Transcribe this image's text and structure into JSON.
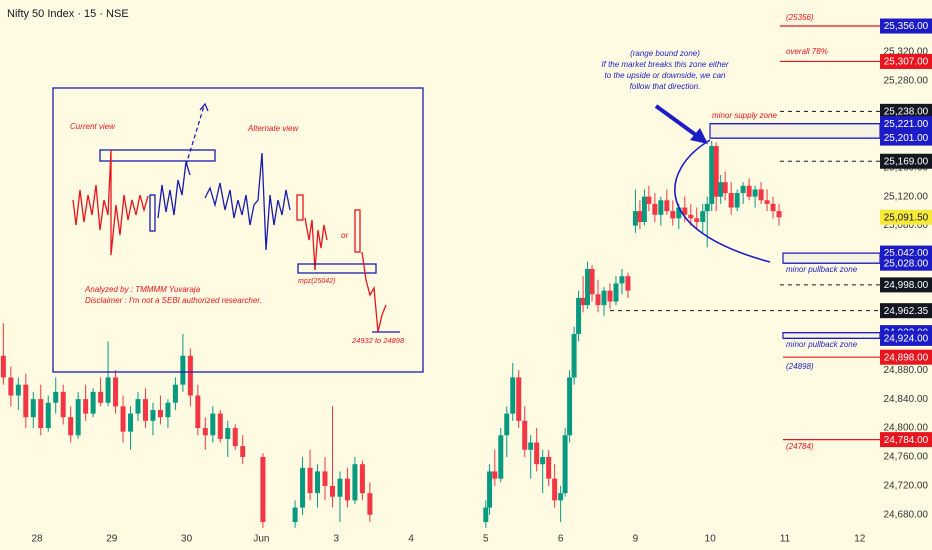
{
  "chart_data": {
    "type": "candlestick",
    "title": "Nifty 50 Index · 15 · NSE",
    "up_color": "#089981",
    "down_color": "#f23645",
    "xlim": [
      -0.495,
      11.965
    ],
    "ylim": [
      24659,
      25392
    ],
    "xticks": [
      {
        "value": 0,
        "label": "28"
      },
      {
        "value": 1,
        "label": "29"
      },
      {
        "value": 2,
        "label": "30"
      },
      {
        "value": 3,
        "label": "Jun"
      },
      {
        "value": 4,
        "label": "3"
      },
      {
        "value": 5,
        "label": "4"
      },
      {
        "value": 6,
        "label": "5"
      },
      {
        "value": 7,
        "label": "6"
      },
      {
        "value": 8,
        "label": "9"
      },
      {
        "value": 9,
        "label": "10"
      },
      {
        "value": 10,
        "label": "11"
      },
      {
        "value": 11,
        "label": "12"
      }
    ],
    "yticks": [
      {
        "value": 24680,
        "label": "24,680.00"
      },
      {
        "value": 24720,
        "label": "24,720.00"
      },
      {
        "value": 24760,
        "label": "24,760.00"
      },
      {
        "value": 24800,
        "label": "24,800.00"
      },
      {
        "value": 24840,
        "label": "24,840.00"
      },
      {
        "value": 24880,
        "label": "24,880.00"
      },
      {
        "value": 24920,
        "label": "24,920.00"
      },
      {
        "value": 24960,
        "label": "24,960.00"
      },
      {
        "value": 25000,
        "label": "25,000.00"
      },
      {
        "value": 25040,
        "label": "25,040.00"
      },
      {
        "value": 25080,
        "label": "25,080.00"
      },
      {
        "value": 25120,
        "label": "25,120.00"
      },
      {
        "value": 25160,
        "label": "25,160.00"
      },
      {
        "value": 25200,
        "label": "25,200.00"
      },
      {
        "value": 25240,
        "label": "25,240.00"
      },
      {
        "value": 25280,
        "label": "25,280.00"
      },
      {
        "value": 25320,
        "label": "25,320.00"
      }
    ],
    "candles": [
      {
        "x": -0.45,
        "o": 24900,
        "h": 24945,
        "l": 24860,
        "c": 24870
      },
      {
        "x": -0.35,
        "o": 24870,
        "h": 24885,
        "l": 24830,
        "c": 24845
      },
      {
        "x": -0.25,
        "o": 24845,
        "h": 24870,
        "l": 24825,
        "c": 24860
      },
      {
        "x": -0.15,
        "o": 24860,
        "h": 24875,
        "l": 24800,
        "c": 24815
      },
      {
        "x": -0.05,
        "o": 24815,
        "h": 24850,
        "l": 24800,
        "c": 24840
      },
      {
        "x": 0.05,
        "o": 24840,
        "h": 24860,
        "l": 24790,
        "c": 24800
      },
      {
        "x": 0.15,
        "o": 24800,
        "h": 24845,
        "l": 24795,
        "c": 24835
      },
      {
        "x": 0.25,
        "o": 24835,
        "h": 24870,
        "l": 24820,
        "c": 24850
      },
      {
        "x": 0.35,
        "o": 24850,
        "h": 24860,
        "l": 24805,
        "c": 24815
      },
      {
        "x": 0.45,
        "o": 24815,
        "h": 24830,
        "l": 24780,
        "c": 24790
      },
      {
        "x": 0.55,
        "o": 24790,
        "h": 24850,
        "l": 24785,
        "c": 24840
      },
      {
        "x": 0.65,
        "o": 24840,
        "h": 24860,
        "l": 24810,
        "c": 24820
      },
      {
        "x": 0.75,
        "o": 24820,
        "h": 24855,
        "l": 24815,
        "c": 24850
      },
      {
        "x": 0.85,
        "o": 24850,
        "h": 24870,
        "l": 24830,
        "c": 24835
      },
      {
        "x": 0.95,
        "o": 24835,
        "h": 24920,
        "l": 24830,
        "c": 24870
      },
      {
        "x": 1.05,
        "o": 24870,
        "h": 24880,
        "l": 24820,
        "c": 24830
      },
      {
        "x": 1.15,
        "o": 24830,
        "h": 24845,
        "l": 24780,
        "c": 24795
      },
      {
        "x": 1.25,
        "o": 24795,
        "h": 24830,
        "l": 24770,
        "c": 24820
      },
      {
        "x": 1.35,
        "o": 24820,
        "h": 24850,
        "l": 24810,
        "c": 24840
      },
      {
        "x": 1.45,
        "o": 24840,
        "h": 24855,
        "l": 24800,
        "c": 24810
      },
      {
        "x": 1.55,
        "o": 24810,
        "h": 24835,
        "l": 24790,
        "c": 24825
      },
      {
        "x": 1.65,
        "o": 24825,
        "h": 24845,
        "l": 24805,
        "c": 24815
      },
      {
        "x": 1.75,
        "o": 24815,
        "h": 24840,
        "l": 24800,
        "c": 24835
      },
      {
        "x": 1.85,
        "o": 24835,
        "h": 24870,
        "l": 24825,
        "c": 24860
      },
      {
        "x": 1.95,
        "o": 24860,
        "h": 24930,
        "l": 24850,
        "c": 24900
      },
      {
        "x": 2.05,
        "o": 24900,
        "h": 24910,
        "l": 24830,
        "c": 24845
      },
      {
        "x": 2.15,
        "o": 24845,
        "h": 24860,
        "l": 24790,
        "c": 24800
      },
      {
        "x": 2.25,
        "o": 24800,
        "h": 24815,
        "l": 24770,
        "c": 24790
      },
      {
        "x": 2.35,
        "o": 24790,
        "h": 24830,
        "l": 24780,
        "c": 24820
      },
      {
        "x": 2.45,
        "o": 24820,
        "h": 24825,
        "l": 24780,
        "c": 24785
      },
      {
        "x": 2.55,
        "o": 24785,
        "h": 24810,
        "l": 24760,
        "c": 24800
      },
      {
        "x": 2.65,
        "o": 24800,
        "h": 24805,
        "l": 24770,
        "c": 24775
      },
      {
        "x": 2.75,
        "o": 24775,
        "h": 24790,
        "l": 24750,
        "c": 24760
      },
      {
        "x": 3.02,
        "o": 24760,
        "h": 24765,
        "l": 24662,
        "c": 24670
      },
      {
        "x": 3.45,
        "o": 24670,
        "h": 24700,
        "l": 24662,
        "c": 24690
      },
      {
        "x": 3.55,
        "o": 24690,
        "h": 24760,
        "l": 24680,
        "c": 24745
      },
      {
        "x": 3.65,
        "o": 24745,
        "h": 24770,
        "l": 24700,
        "c": 24710
      },
      {
        "x": 3.75,
        "o": 24710,
        "h": 24750,
        "l": 24690,
        "c": 24740
      },
      {
        "x": 3.85,
        "o": 24740,
        "h": 24760,
        "l": 24700,
        "c": 24720
      },
      {
        "x": 3.95,
        "o": 24720,
        "h": 24830,
        "l": 24690,
        "c": 24705
      },
      {
        "x": 4.05,
        "o": 24705,
        "h": 24740,
        "l": 24670,
        "c": 24730
      },
      {
        "x": 4.15,
        "o": 24730,
        "h": 24745,
        "l": 24690,
        "c": 24700
      },
      {
        "x": 4.25,
        "o": 24700,
        "h": 24760,
        "l": 24695,
        "c": 24750
      },
      {
        "x": 4.35,
        "o": 24750,
        "h": 24755,
        "l": 24700,
        "c": 24710
      },
      {
        "x": 4.45,
        "o": 24710,
        "h": 24725,
        "l": 24670,
        "c": 24680
      },
      {
        "x": 6.0,
        "o": 24670,
        "h": 24700,
        "l": 24662,
        "c": 24690
      },
      {
        "x": 6.05,
        "o": 24690,
        "h": 24750,
        "l": 24680,
        "c": 24740
      },
      {
        "x": 6.12,
        "o": 24740,
        "h": 24770,
        "l": 24720,
        "c": 24730
      },
      {
        "x": 6.2,
        "o": 24730,
        "h": 24800,
        "l": 24725,
        "c": 24790
      },
      {
        "x": 6.28,
        "o": 24790,
        "h": 24830,
        "l": 24760,
        "c": 24820
      },
      {
        "x": 6.36,
        "o": 24820,
        "h": 24890,
        "l": 24810,
        "c": 24870
      },
      {
        "x": 6.44,
        "o": 24870,
        "h": 24880,
        "l": 24800,
        "c": 24810
      },
      {
        "x": 6.52,
        "o": 24810,
        "h": 24830,
        "l": 24760,
        "c": 24770
      },
      {
        "x": 6.6,
        "o": 24770,
        "h": 24790,
        "l": 24730,
        "c": 24780
      },
      {
        "x": 6.68,
        "o": 24780,
        "h": 24800,
        "l": 24740,
        "c": 24750
      },
      {
        "x": 6.76,
        "o": 24750,
        "h": 24770,
        "l": 24710,
        "c": 24760
      },
      {
        "x": 6.84,
        "o": 24760,
        "h": 24770,
        "l": 24720,
        "c": 24730
      },
      {
        "x": 6.92,
        "o": 24730,
        "h": 24750,
        "l": 24690,
        "c": 24700
      },
      {
        "x": 7.0,
        "o": 24700,
        "h": 24720,
        "l": 24670,
        "c": 24710
      },
      {
        "x": 7.06,
        "o": 24710,
        "h": 24800,
        "l": 24705,
        "c": 24790
      },
      {
        "x": 7.12,
        "o": 24790,
        "h": 24880,
        "l": 24780,
        "c": 24870
      },
      {
        "x": 7.18,
        "o": 24870,
        "h": 24940,
        "l": 24860,
        "c": 24930
      },
      {
        "x": 7.24,
        "o": 24930,
        "h": 24990,
        "l": 24920,
        "c": 24980
      },
      {
        "x": 7.3,
        "o": 24980,
        "h": 25010,
        "l": 24960,
        "c": 24970
      },
      {
        "x": 7.36,
        "o": 24970,
        "h": 25030,
        "l": 24965,
        "c": 25020
      },
      {
        "x": 7.42,
        "o": 25020,
        "h": 25025,
        "l": 24975,
        "c": 24985
      },
      {
        "x": 7.5,
        "o": 24985,
        "h": 25005,
        "l": 24960,
        "c": 24970
      },
      {
        "x": 7.58,
        "o": 24970,
        "h": 24995,
        "l": 24955,
        "c": 24990
      },
      {
        "x": 7.66,
        "o": 24990,
        "h": 25000,
        "l": 24965,
        "c": 24975
      },
      {
        "x": 7.74,
        "o": 24975,
        "h": 25010,
        "l": 24970,
        "c": 25000
      },
      {
        "x": 7.82,
        "o": 25000,
        "h": 25020,
        "l": 24985,
        "c": 25010
      },
      {
        "x": 7.9,
        "o": 25010,
        "h": 25015,
        "l": 24980,
        "c": 24990
      },
      {
        "x": 8.0,
        "o": 25080,
        "h": 25130,
        "l": 25070,
        "c": 25100
      },
      {
        "x": 8.06,
        "o": 25100,
        "h": 25115,
        "l": 25075,
        "c": 25085
      },
      {
        "x": 8.12,
        "o": 25085,
        "h": 25130,
        "l": 25080,
        "c": 25120
      },
      {
        "x": 8.18,
        "o": 25120,
        "h": 25135,
        "l": 25100,
        "c": 25110
      },
      {
        "x": 8.26,
        "o": 25110,
        "h": 25125,
        "l": 25085,
        "c": 25095
      },
      {
        "x": 8.34,
        "o": 25095,
        "h": 25120,
        "l": 25080,
        "c": 25115
      },
      {
        "x": 8.42,
        "o": 25115,
        "h": 25130,
        "l": 25095,
        "c": 25100
      },
      {
        "x": 8.5,
        "o": 25100,
        "h": 25115,
        "l": 25080,
        "c": 25090
      },
      {
        "x": 8.58,
        "o": 25090,
        "h": 25110,
        "l": 25075,
        "c": 25105
      },
      {
        "x": 8.66,
        "o": 25105,
        "h": 25120,
        "l": 25085,
        "c": 25095
      },
      {
        "x": 8.74,
        "o": 25095,
        "h": 25110,
        "l": 25080,
        "c": 25090
      },
      {
        "x": 8.82,
        "o": 25090,
        "h": 25105,
        "l": 25075,
        "c": 25085
      },
      {
        "x": 8.9,
        "o": 25085,
        "h": 25110,
        "l": 25070,
        "c": 25100
      },
      {
        "x": 8.96,
        "o": 25100,
        "h": 25120,
        "l": 25050,
        "c": 25110
      },
      {
        "x": 9.02,
        "o": 25110,
        "h": 25197,
        "l": 25100,
        "c": 25190
      },
      {
        "x": 9.08,
        "o": 25190,
        "h": 25195,
        "l": 25100,
        "c": 25120
      },
      {
        "x": 9.14,
        "o": 25120,
        "h": 25150,
        "l": 25110,
        "c": 25140
      },
      {
        "x": 9.2,
        "o": 25140,
        "h": 25155,
        "l": 25115,
        "c": 25125
      },
      {
        "x": 9.28,
        "o": 25125,
        "h": 25140,
        "l": 25095,
        "c": 25105
      },
      {
        "x": 9.36,
        "o": 25105,
        "h": 25130,
        "l": 25100,
        "c": 25125
      },
      {
        "x": 9.44,
        "o": 25125,
        "h": 25140,
        "l": 25110,
        "c": 25135
      },
      {
        "x": 9.52,
        "o": 25135,
        "h": 25145,
        "l": 25115,
        "c": 25120
      },
      {
        "x": 9.6,
        "o": 25120,
        "h": 25135,
        "l": 25105,
        "c": 25130
      },
      {
        "x": 9.68,
        "o": 25130,
        "h": 25140,
        "l": 25110,
        "c": 25115
      },
      {
        "x": 9.76,
        "o": 25115,
        "h": 25130,
        "l": 25100,
        "c": 25110
      },
      {
        "x": 9.84,
        "o": 25110,
        "h": 25120,
        "l": 25090,
        "c": 25100
      },
      {
        "x": 9.92,
        "o": 25100,
        "h": 25110,
        "l": 25080,
        "c": 25091.5
      }
    ],
    "levels": [
      {
        "value": 25356,
        "label": "25,356.00",
        "color": "#1c1cc6",
        "text_color": "#ffffff",
        "line_color": "#e8141e",
        "style": "solid"
      },
      {
        "value": 25307,
        "label": "25,307.00",
        "color": "#e8141e",
        "text_color": "#ffffff",
        "line_color": "#e8141e",
        "style": "solid"
      },
      {
        "value": 25238,
        "label": "25,238.00",
        "color": "#131722",
        "text_color": "#ffffff",
        "line_color": "#131722",
        "style": "dashed"
      },
      {
        "value": 25221,
        "label": "25,221.00",
        "color": "#1c1cc6",
        "text_color": "#ffffff",
        "line_color": "#1c1cc6",
        "style": "solid"
      },
      {
        "value": 25201,
        "label": "25,201.00",
        "color": "#1c1cc6",
        "text_color": "#ffffff",
        "line_color": "#1c1cc6",
        "style": "solid"
      },
      {
        "value": 25169,
        "label": "25,169.00",
        "color": "#131722",
        "text_color": "#ffffff",
        "line_color": "#131722",
        "style": "dashed"
      },
      {
        "value": 25091.5,
        "label": "25,091.50",
        "color": "#f7e93a",
        "text_color": "#131722",
        "line_color": "#f7e93a",
        "style": "none"
      },
      {
        "value": 25042,
        "label": "25,042.00",
        "color": "#1c1cc6",
        "text_color": "#ffffff",
        "line_color": "#1c1cc6",
        "style": "solid"
      },
      {
        "value": 25028,
        "label": "25,028.00",
        "color": "#1c1cc6",
        "text_color": "#ffffff",
        "line_color": "#1c1cc6",
        "style": "solid"
      },
      {
        "value": 24998,
        "label": "24,998.00",
        "color": "#131722",
        "text_color": "#ffffff",
        "line_color": "#131722",
        "style": "dashed"
      },
      {
        "value": 24962.35,
        "label": "24,962.35",
        "color": "#131722",
        "text_color": "#ffffff",
        "line_color": "#131722",
        "style": "dashed"
      },
      {
        "value": 24932,
        "label": "24,932.00",
        "color": "#1c1cc6",
        "text_color": "#ffffff",
        "line_color": "#1c1cc6",
        "style": "solid"
      },
      {
        "value": 24924,
        "label": "24,924.00",
        "color": "#1c1cc6",
        "text_color": "#ffffff",
        "line_color": "#1c1cc6",
        "style": "solid"
      },
      {
        "value": 24898,
        "label": "24,898.00",
        "color": "#e8141e",
        "text_color": "#ffffff",
        "line_color": "#e8141e",
        "style": "solid"
      },
      {
        "value": 24784,
        "label": "24,784.00",
        "color": "#e8141e",
        "text_color": "#ffffff",
        "line_color": "#e8141e",
        "style": "solid"
      }
    ],
    "annotations": {
      "top_target": "(25356)",
      "overall": "overall 78%",
      "supply_zone": "minor supply zone",
      "pullback_zone_1": "minor pullback zone",
      "pullback_zone_2": "minor pullback zone",
      "target_24898": "(24898)",
      "target_24784": "(24784)",
      "range_note": [
        "(range bound zone)",
        "If the market breaks this zone either",
        "to the upside or downside, we can",
        "follow that direction."
      ]
    },
    "inset": {
      "current": "Current view",
      "alternate": "Alternate view",
      "analyst": "Analyzed by : TMMMM Yuvaraja",
      "disclaimer": "Disclaimer : I'm not a SEBI authorized researcher.",
      "mpz": "mpz(25042)",
      "or": "or",
      "target": "24932 to 24898"
    }
  }
}
